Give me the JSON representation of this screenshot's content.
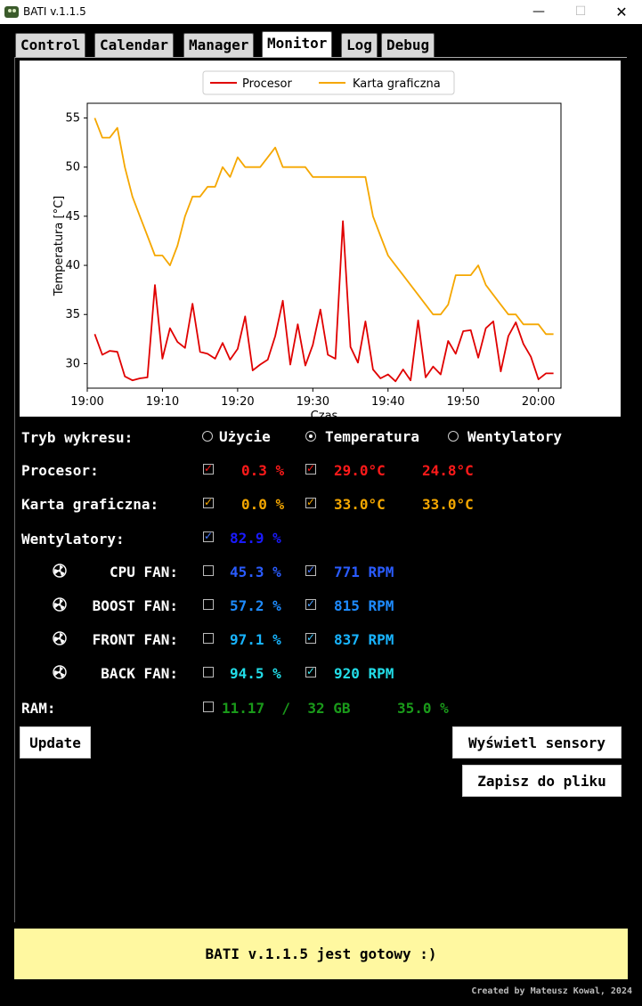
{
  "window": {
    "title": "BATI v.1.1.5",
    "min_glyph": "—",
    "max_glyph": "☐",
    "close_glyph": "✕"
  },
  "tabs": [
    {
      "label": "Control",
      "active": false
    },
    {
      "label": "Calendar",
      "active": false
    },
    {
      "label": "Manager",
      "active": false
    },
    {
      "label": "Monitor",
      "active": true
    },
    {
      "label": "Log",
      "active": false
    },
    {
      "label": "Debug",
      "active": false
    }
  ],
  "chart_data": {
    "type": "line",
    "xlabel": "Czas",
    "ylabel": "Temperatura [°C]",
    "legend_position": "top-center",
    "ylim": [
      27.5,
      56.5
    ],
    "yticks": [
      30,
      35,
      40,
      45,
      50,
      55
    ],
    "xlim": [
      "19:00",
      "20:03"
    ],
    "xticks": [
      "19:00",
      "19:10",
      "19:20",
      "19:30",
      "19:40",
      "19:50",
      "20:00"
    ],
    "grid": false,
    "series": [
      {
        "name": "Procesor",
        "color": "#e00000",
        "x": [
          "19:01",
          "19:02",
          "19:03",
          "19:04",
          "19:05",
          "19:06",
          "19:07",
          "19:08",
          "19:09",
          "19:10",
          "19:11",
          "19:12",
          "19:13",
          "19:14",
          "19:15",
          "19:16",
          "19:17",
          "19:18",
          "19:19",
          "19:20",
          "19:21",
          "19:22",
          "19:23",
          "19:24",
          "19:25",
          "19:26",
          "19:27",
          "19:28",
          "19:29",
          "19:30",
          "19:31",
          "19:32",
          "19:33",
          "19:34",
          "19:35",
          "19:36",
          "19:37",
          "19:38",
          "19:39",
          "19:40",
          "19:41",
          "19:42",
          "19:43",
          "19:44",
          "19:45",
          "19:46",
          "19:47",
          "19:48",
          "19:49",
          "19:50",
          "19:51",
          "19:52",
          "19:53",
          "19:54",
          "19:55",
          "19:56",
          "19:57",
          "19:58",
          "19:59",
          "20:00",
          "20:01",
          "20:02"
        ],
        "values": [
          33.0,
          30.9,
          31.3,
          31.2,
          28.7,
          28.3,
          28.5,
          28.6,
          38.0,
          30.5,
          33.6,
          32.2,
          31.6,
          36.1,
          31.2,
          31.0,
          30.5,
          32.1,
          30.4,
          31.5,
          34.8,
          29.3,
          29.9,
          30.4,
          32.8,
          36.4,
          29.9,
          34.0,
          29.8,
          31.9,
          35.5,
          30.9,
          30.5,
          44.5,
          31.7,
          30.1,
          34.3,
          29.4,
          28.5,
          28.9,
          28.2,
          29.4,
          28.3,
          34.4,
          28.6,
          29.7,
          28.9,
          32.3,
          31.0,
          33.3,
          33.4,
          30.6,
          33.6,
          34.3,
          29.2,
          32.8,
          34.2,
          32.0,
          30.7,
          28.4,
          29.0,
          29.0
        ]
      },
      {
        "name": "Karta graficzna",
        "color": "#f5a700",
        "x": [
          "19:01",
          "19:02",
          "19:03",
          "19:04",
          "19:05",
          "19:06",
          "19:07",
          "19:08",
          "19:09",
          "19:10",
          "19:11",
          "19:12",
          "19:13",
          "19:14",
          "19:15",
          "19:16",
          "19:17",
          "19:18",
          "19:19",
          "19:20",
          "19:21",
          "19:22",
          "19:23",
          "19:24",
          "19:25",
          "19:26",
          "19:27",
          "19:28",
          "19:29",
          "19:30",
          "19:31",
          "19:32",
          "19:33",
          "19:34",
          "19:35",
          "19:36",
          "19:37",
          "19:38",
          "19:39",
          "19:40",
          "19:41",
          "19:42",
          "19:43",
          "19:44",
          "19:45",
          "19:46",
          "19:47",
          "19:48",
          "19:49",
          "19:50",
          "19:51",
          "19:52",
          "19:53",
          "19:54",
          "19:55",
          "19:56",
          "19:57",
          "19:58",
          "19:59",
          "20:00",
          "20:01",
          "20:02"
        ],
        "values": [
          55,
          53,
          53,
          54,
          50,
          47,
          45,
          43,
          41,
          41,
          40,
          42,
          45,
          47,
          47,
          48,
          48,
          50,
          49,
          51,
          50,
          50,
          50,
          51,
          52,
          50,
          50,
          50,
          50,
          49,
          49,
          49,
          49,
          49,
          49,
          49,
          49,
          45,
          43,
          41,
          40,
          39,
          38,
          37,
          36,
          35,
          35,
          36,
          39,
          39,
          39,
          40,
          38,
          37,
          36,
          35,
          35,
          34,
          34,
          34,
          33,
          33
        ]
      }
    ]
  },
  "controls": {
    "mode": {
      "label": "Tryb wykresu:",
      "options": [
        {
          "label": "Użycie",
          "selected": false
        },
        {
          "label": "Temperatura",
          "selected": true
        },
        {
          "label": "Wentylatory",
          "selected": false
        }
      ]
    },
    "cpu": {
      "label": "Procesor:",
      "usage_checked": true,
      "usage": "0.3 %",
      "temp_checked": true,
      "temp": "29.0°C",
      "temp2": "24.8°C",
      "color": "#ff1a1a"
    },
    "gpu": {
      "label": "Karta graficzna:",
      "usage_checked": true,
      "usage": "0.0 %",
      "temp_checked": true,
      "temp": "33.0°C",
      "temp2": "33.0°C",
      "color": "#f5a700"
    },
    "fans_total": {
      "label": "Wentylatory:",
      "checked": true,
      "value": "82.9 %",
      "color": "#1a1aff"
    },
    "fans": [
      {
        "label": "CPU FAN:",
        "pct_checked": false,
        "pct": "45.3 %",
        "rpm_checked": true,
        "rpm": "771 RPM",
        "color": "#2a5cff"
      },
      {
        "label": "BOOST FAN:",
        "pct_checked": false,
        "pct": "57.2 %",
        "rpm_checked": true,
        "rpm": "815 RPM",
        "color": "#1e8cff"
      },
      {
        "label": "FRONT FAN:",
        "pct_checked": false,
        "pct": "97.1 %",
        "rpm_checked": true,
        "rpm": "837 RPM",
        "color": "#18b4ff"
      },
      {
        "label": "BACK FAN:",
        "pct_checked": false,
        "pct": "94.5 %",
        "rpm_checked": true,
        "rpm": "920 RPM",
        "color": "#22dde8"
      }
    ],
    "ram": {
      "label": "RAM:",
      "checked": false,
      "value": "11.17  /  32 GB",
      "pct": "35.0 %",
      "color": "#1a9a1a"
    }
  },
  "buttons": {
    "update": "Update",
    "sensors": "Wyświetl sensory",
    "save": "Zapisz do pliku"
  },
  "status": "BATI v.1.1.5 jest gotowy :)",
  "credit": "Created by Mateusz Kowal, 2024"
}
